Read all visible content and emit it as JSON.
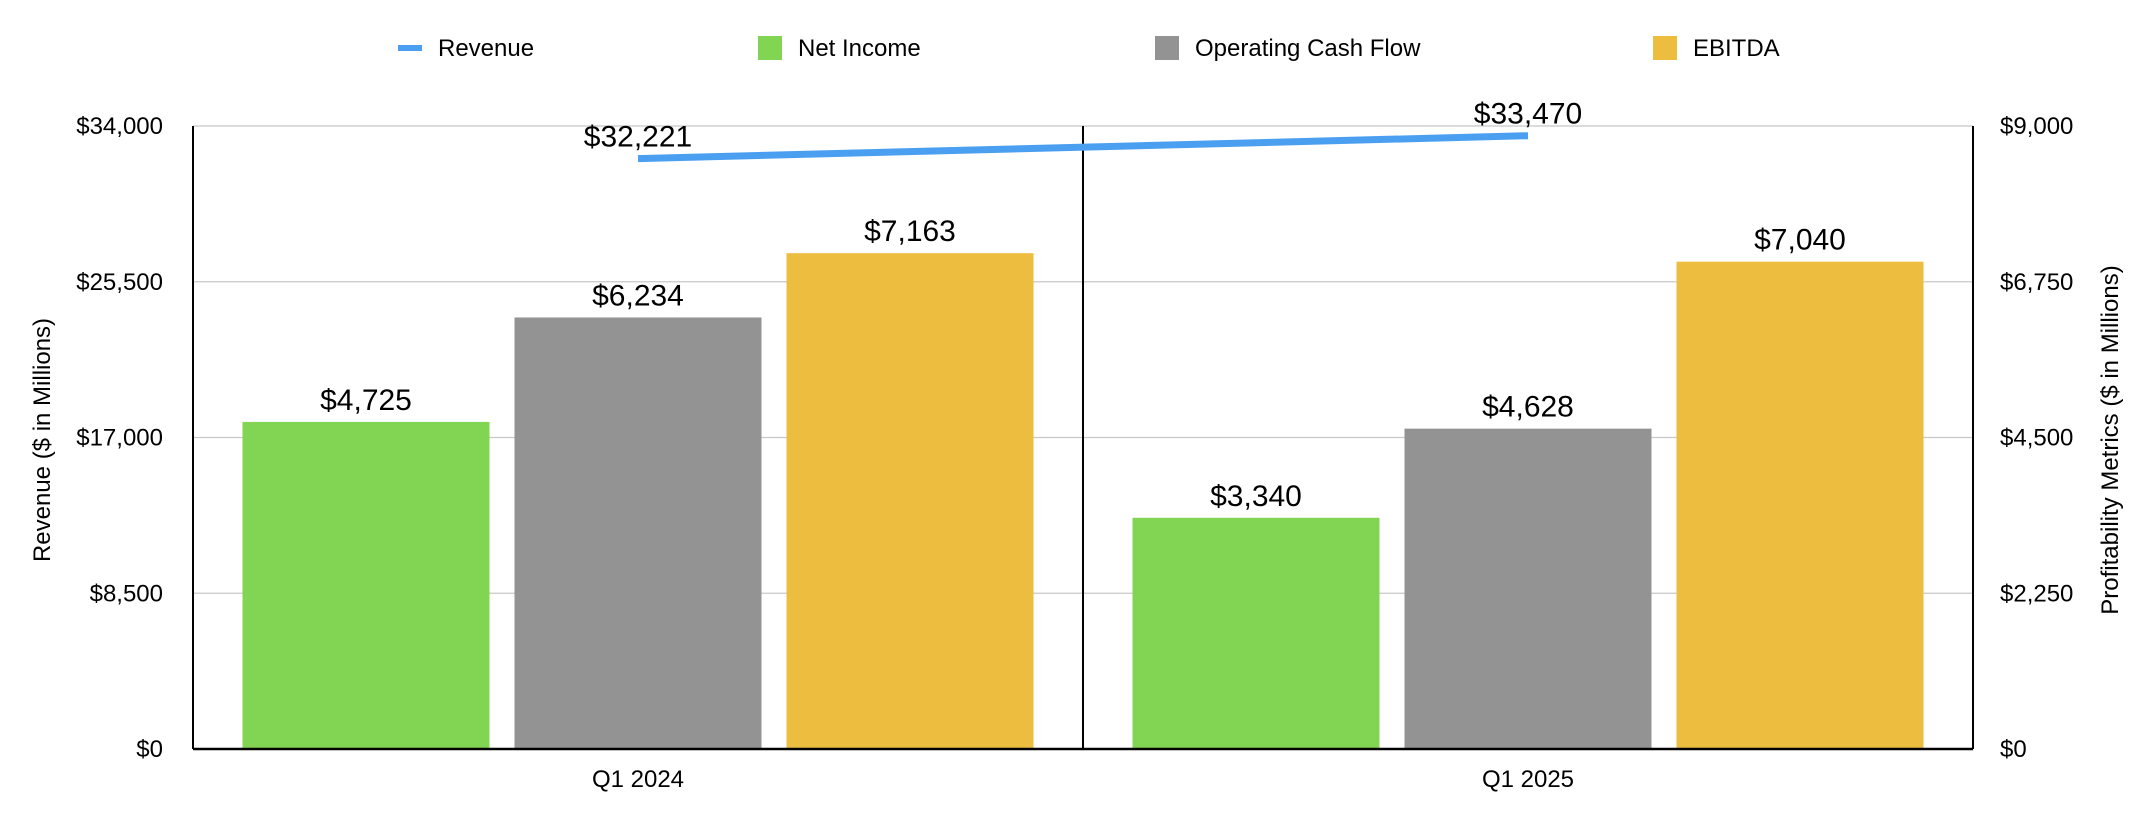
{
  "chart_data": {
    "type": "bar",
    "categories": [
      "Q1 2024",
      "Q1 2025"
    ],
    "legend": {
      "placement": "top",
      "items": [
        {
          "name": "Revenue",
          "marker": "line",
          "color": "#4a9ff0"
        },
        {
          "name": "Net Income",
          "marker": "square",
          "color": "#82d552"
        },
        {
          "name": "Operating Cash Flow",
          "marker": "square",
          "color": "#939393"
        },
        {
          "name": "EBITDA",
          "marker": "square",
          "color": "#edbd40"
        }
      ]
    },
    "line_series": [
      {
        "name": "Revenue",
        "axis": "left",
        "type": "line",
        "color": "#4a9ff0",
        "values": [
          32221,
          33470
        ],
        "labels": [
          "$32,221",
          "$33,470"
        ]
      }
    ],
    "bar_series": [
      {
        "name": "Net Income",
        "axis": "right",
        "color": "#82d552",
        "values": [
          4725,
          3340
        ],
        "labels": [
          "$4,725",
          "$3,340"
        ]
      },
      {
        "name": "Operating Cash Flow",
        "axis": "right",
        "color": "#939393",
        "values": [
          6234,
          4628
        ],
        "labels": [
          "$6,234",
          "$4,628"
        ]
      },
      {
        "name": "EBITDA",
        "axis": "right",
        "color": "#edbd40",
        "values": [
          7163,
          7040
        ],
        "labels": [
          "$7,163",
          "$7,040"
        ]
      }
    ],
    "y_left": {
      "label": "Revenue ($ in Millions)",
      "ylim": [
        0,
        34000
      ],
      "ticks": [
        0,
        8500,
        17000,
        25500,
        34000
      ],
      "tick_labels": [
        "$0",
        "$8,500",
        "$17,000",
        "$25,500",
        "$34,000"
      ]
    },
    "y_right": {
      "label": "Profitability Metrics ($ in Millions)",
      "ylim": [
        0,
        9000
      ],
      "ticks": [
        0,
        2250,
        4500,
        6750,
        9000
      ],
      "tick_labels": [
        "$0",
        "$2,250",
        "$4,500",
        "$6,750",
        "$9,000"
      ]
    },
    "grid": true
  }
}
